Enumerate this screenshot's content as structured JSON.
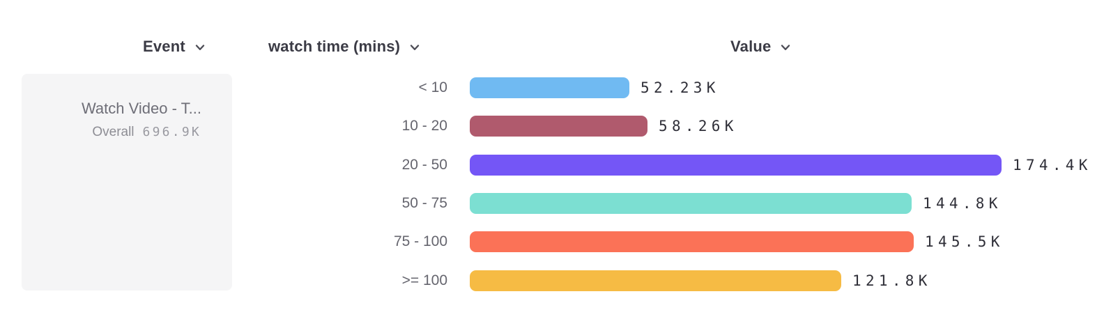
{
  "header": {
    "columns": [
      {
        "label": "Event"
      },
      {
        "label": "watch time (mins)"
      },
      {
        "label": "Value"
      }
    ]
  },
  "event_panel": {
    "title": "Watch Video - T...",
    "overall_label": "Overall",
    "overall_value": "696.9K"
  },
  "chart_data": {
    "type": "bar",
    "orientation": "horizontal",
    "title": "",
    "xlabel": "Value",
    "ylabel": "watch time (mins)",
    "unit": "K",
    "grid": false,
    "legend": "none",
    "categories": [
      "< 10",
      "10 - 20",
      "20 - 50",
      "50 - 75",
      "75 - 100",
      ">= 100"
    ],
    "values": [
      52.23,
      58.26,
      174.4,
      144.8,
      145.5,
      121.8
    ],
    "value_labels": [
      "52.23K",
      "58.26K",
      "174.4K",
      "144.8K",
      "145.5K",
      "121.8K"
    ],
    "bar_colors": [
      "#70baf2",
      "#b05a6d",
      "#7456f6",
      "#7cdfd2",
      "#fb7257",
      "#f6bb44"
    ],
    "overall_total": "696.9K"
  },
  "icons": {
    "chevron_down_icon": "⌄"
  },
  "colors": {
    "background": "#ffffff",
    "panel_background": "#f5f5f6",
    "header_text": "#3b3b45",
    "category_text": "#65656e",
    "value_text": "#2f2f38",
    "muted_text": "#9a9aa1"
  }
}
